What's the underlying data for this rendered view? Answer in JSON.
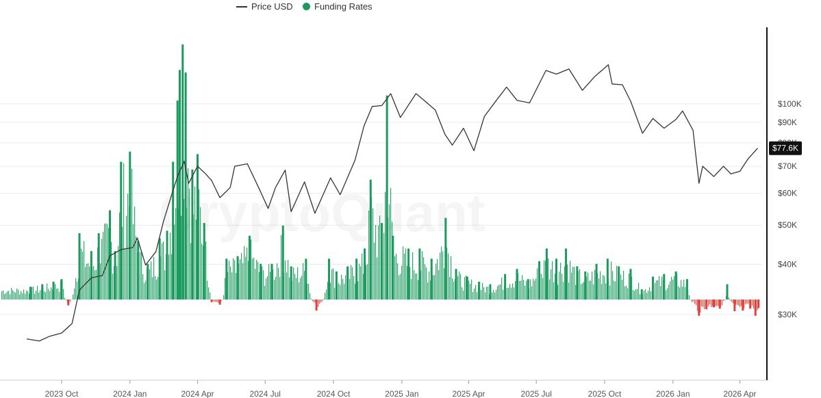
{
  "legend": {
    "price_label": "Price USD",
    "funding_label": "Funding Rates"
  },
  "watermark": "CryptoQuant",
  "colors": {
    "price_line": "#333333",
    "funding_positive": "#1a9a5c",
    "funding_negative": "#e0413a",
    "legend_funding_dot": "#1a9a5c",
    "badge_bg": "#111111",
    "grid": "#ececec",
    "axis": "#111111"
  },
  "chart_data": {
    "type": "line",
    "title": "",
    "xlabel": "",
    "ylabel": "",
    "y_scale": "log",
    "ylim": [
      23000,
      135000
    ],
    "grid": "horizontal",
    "legend_position": "top-center",
    "y_ticks": [
      {
        "value": 100000,
        "label": "$100K"
      },
      {
        "value": 90000,
        "label": "$90K"
      },
      {
        "value": 80000,
        "label": "$80K"
      },
      {
        "value": 70000,
        "label": "$70K"
      },
      {
        "value": 60000,
        "label": "$60K"
      },
      {
        "value": 50000,
        "label": "$50K"
      },
      {
        "value": 40000,
        "label": "$40K"
      },
      {
        "value": 30000,
        "label": "$30K"
      }
    ],
    "x_range": [
      "2023-08-15",
      "2026-05-01"
    ],
    "x_ticks": [
      {
        "date": "2023-10-01",
        "label": "2023 Oct"
      },
      {
        "date": "2024-01-01",
        "label": "2024 Jan"
      },
      {
        "date": "2024-04-01",
        "label": "2024 Apr"
      },
      {
        "date": "2024-07-01",
        "label": "2024 Jul"
      },
      {
        "date": "2024-10-01",
        "label": "2024 Oct"
      },
      {
        "date": "2025-01-01",
        "label": "2025 Jan"
      },
      {
        "date": "2025-04-01",
        "label": "2025 Apr"
      },
      {
        "date": "2025-07-01",
        "label": "2025 Jul"
      },
      {
        "date": "2025-10-01",
        "label": "2025 Oct"
      },
      {
        "date": "2026-01-01",
        "label": "2026 Jan"
      },
      {
        "date": "2026-04-01",
        "label": "2026 Apr"
      }
    ],
    "last_price_label": "$77.6K",
    "series": [
      {
        "name": "Price USD",
        "type": "line",
        "points": [
          [
            "2023-08-15",
            26100
          ],
          [
            "2023-09-01",
            25800
          ],
          [
            "2023-09-15",
            26500
          ],
          [
            "2023-10-01",
            27000
          ],
          [
            "2023-10-15",
            28500
          ],
          [
            "2023-10-25",
            34500
          ],
          [
            "2023-11-10",
            37000
          ],
          [
            "2023-11-25",
            37500
          ],
          [
            "2023-12-05",
            42000
          ],
          [
            "2023-12-20",
            43500
          ],
          [
            "2024-01-05",
            44000
          ],
          [
            "2024-01-11",
            46500
          ],
          [
            "2024-01-22",
            39800
          ],
          [
            "2024-02-05",
            43000
          ],
          [
            "2024-02-15",
            51000
          ],
          [
            "2024-02-28",
            61000
          ],
          [
            "2024-03-05",
            66000
          ],
          [
            "2024-03-14",
            72000
          ],
          [
            "2024-03-20",
            63500
          ],
          [
            "2024-04-01",
            70000
          ],
          [
            "2024-04-12",
            67000
          ],
          [
            "2024-04-20",
            64500
          ],
          [
            "2024-05-01",
            58500
          ],
          [
            "2024-05-15",
            62000
          ],
          [
            "2024-05-21",
            70000
          ],
          [
            "2024-06-07",
            71000
          ],
          [
            "2024-06-24",
            61000
          ],
          [
            "2024-07-05",
            55000
          ],
          [
            "2024-07-15",
            62000
          ],
          [
            "2024-07-28",
            68500
          ],
          [
            "2024-08-05",
            54000
          ],
          [
            "2024-08-23",
            64000
          ],
          [
            "2024-09-06",
            53500
          ],
          [
            "2024-09-27",
            65500
          ],
          [
            "2024-10-10",
            59500
          ],
          [
            "2024-10-30",
            72500
          ],
          [
            "2024-11-11",
            88000
          ],
          [
            "2024-11-22",
            98500
          ],
          [
            "2024-12-05",
            99000
          ],
          [
            "2024-12-17",
            106000
          ],
          [
            "2024-12-30",
            92500
          ],
          [
            "2025-01-20",
            106000
          ],
          [
            "2025-01-31",
            102000
          ],
          [
            "2025-02-15",
            96500
          ],
          [
            "2025-02-28",
            84000
          ],
          [
            "2025-03-10",
            79000
          ],
          [
            "2025-03-25",
            87000
          ],
          [
            "2025-04-08",
            76500
          ],
          [
            "2025-04-22",
            93000
          ],
          [
            "2025-05-10",
            103000
          ],
          [
            "2025-05-22",
            110000
          ],
          [
            "2025-06-05",
            102000
          ],
          [
            "2025-06-22",
            100500
          ],
          [
            "2025-07-14",
            121000
          ],
          [
            "2025-07-28",
            118500
          ],
          [
            "2025-08-14",
            122000
          ],
          [
            "2025-09-01",
            108000
          ],
          [
            "2025-09-18",
            117000
          ],
          [
            "2025-10-06",
            125000
          ],
          [
            "2025-10-11",
            112000
          ],
          [
            "2025-10-25",
            111500
          ],
          [
            "2025-11-05",
            101500
          ],
          [
            "2025-11-21",
            84500
          ],
          [
            "2025-12-05",
            92000
          ],
          [
            "2025-12-20",
            87000
          ],
          [
            "2026-01-05",
            91500
          ],
          [
            "2026-01-14",
            96000
          ],
          [
            "2026-01-28",
            86000
          ],
          [
            "2026-02-05",
            63500
          ],
          [
            "2026-02-10",
            70000
          ],
          [
            "2026-02-25",
            66000
          ],
          [
            "2026-03-10",
            70000
          ],
          [
            "2026-03-20",
            67000
          ],
          [
            "2026-04-01",
            68000
          ],
          [
            "2026-04-12",
            73000
          ],
          [
            "2026-04-25",
            77600
          ]
        ]
      },
      {
        "name": "Funding Rates",
        "type": "bar",
        "unit": "relative (0 = baseline, 1 = tallest positive spike)",
        "points": [
          [
            "2023-08-20",
            0.05
          ],
          [
            "2023-09-05",
            0.06
          ],
          [
            "2023-09-20",
            0.07
          ],
          [
            "2023-10-01",
            0.08
          ],
          [
            "2023-10-10",
            -0.09
          ],
          [
            "2023-10-25",
            0.26
          ],
          [
            "2023-11-10",
            0.19
          ],
          [
            "2023-11-20",
            0.26
          ],
          [
            "2023-12-05",
            0.35
          ],
          [
            "2023-12-12",
            0.19
          ],
          [
            "2023-12-20",
            0.54
          ],
          [
            "2024-01-01",
            0.58
          ],
          [
            "2024-01-12",
            0.23
          ],
          [
            "2024-01-25",
            0.14
          ],
          [
            "2024-02-10",
            0.24
          ],
          [
            "2024-02-20",
            0.27
          ],
          [
            "2024-02-28",
            0.54
          ],
          [
            "2024-03-05",
            0.78
          ],
          [
            "2024-03-08",
            0.9
          ],
          [
            "2024-03-12",
            1.0
          ],
          [
            "2024-03-16",
            0.89
          ],
          [
            "2024-03-25",
            0.51
          ],
          [
            "2024-04-01",
            0.57
          ],
          [
            "2024-04-10",
            0.3
          ],
          [
            "2024-04-20",
            -0.04
          ],
          [
            "2024-05-01",
            -0.08
          ],
          [
            "2024-05-10",
            0.16
          ],
          [
            "2024-05-25",
            0.17
          ],
          [
            "2024-06-10",
            0.25
          ],
          [
            "2024-06-25",
            0.14
          ],
          [
            "2024-07-10",
            0.14
          ],
          [
            "2024-07-25",
            0.29
          ],
          [
            "2024-08-05",
            0.13
          ],
          [
            "2024-08-25",
            0.16
          ],
          [
            "2024-09-08",
            -0.17
          ],
          [
            "2024-09-25",
            0.16
          ],
          [
            "2024-10-05",
            0.11
          ],
          [
            "2024-10-20",
            0.13
          ],
          [
            "2024-11-01",
            0.16
          ],
          [
            "2024-11-12",
            0.2
          ],
          [
            "2024-11-20",
            0.47
          ],
          [
            "2024-12-05",
            0.3
          ],
          [
            "2024-12-12",
            0.8
          ],
          [
            "2024-12-20",
            0.25
          ],
          [
            "2025-01-10",
            0.2
          ],
          [
            "2025-01-25",
            0.2
          ],
          [
            "2025-02-10",
            0.16
          ],
          [
            "2025-03-01",
            0.32
          ],
          [
            "2025-03-15",
            0.12
          ],
          [
            "2025-03-30",
            0.09
          ],
          [
            "2025-04-15",
            0.07
          ],
          [
            "2025-04-30",
            0.06
          ],
          [
            "2025-05-20",
            0.1
          ],
          [
            "2025-06-05",
            0.12
          ],
          [
            "2025-06-20",
            0.08
          ],
          [
            "2025-07-05",
            0.15
          ],
          [
            "2025-07-15",
            0.2
          ],
          [
            "2025-07-28",
            0.16
          ],
          [
            "2025-08-10",
            0.2
          ],
          [
            "2025-08-25",
            0.13
          ],
          [
            "2025-09-05",
            0.11
          ],
          [
            "2025-09-20",
            0.14
          ],
          [
            "2025-10-05",
            0.16
          ],
          [
            "2025-10-20",
            0.13
          ],
          [
            "2025-11-05",
            0.12
          ],
          [
            "2025-11-20",
            0.04
          ],
          [
            "2025-12-05",
            0.09
          ],
          [
            "2025-12-20",
            0.1
          ],
          [
            "2026-01-05",
            0.11
          ],
          [
            "2026-01-20",
            0.08
          ],
          [
            "2026-02-05",
            -0.25
          ],
          [
            "2026-02-15",
            -0.15
          ],
          [
            "2026-02-25",
            -0.12
          ],
          [
            "2026-03-05",
            -0.14
          ],
          [
            "2026-03-15",
            0.06
          ],
          [
            "2026-03-25",
            -0.18
          ],
          [
            "2026-04-05",
            -0.17
          ],
          [
            "2026-04-15",
            -0.14
          ],
          [
            "2026-04-22",
            -0.25
          ],
          [
            "2026-04-26",
            -0.13
          ]
        ]
      }
    ]
  }
}
